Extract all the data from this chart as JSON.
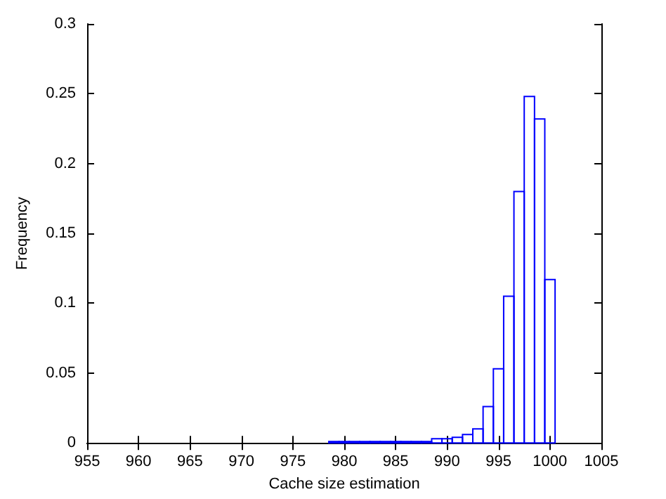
{
  "chart_data": {
    "type": "histogram",
    "xlabel": "Cache size estimation",
    "ylabel": "Frequency",
    "color": "#0000ff",
    "bins": [
      978.5,
      979.5,
      980.5,
      981.5,
      982.5,
      983.5,
      984.5,
      985.5,
      986.5,
      987.5,
      988.5,
      989.5,
      990.5,
      991.5,
      992.5,
      993.5,
      994.5,
      995.5,
      996.5,
      997.5,
      998.5,
      999.5,
      1000.5
    ],
    "values": [
      0.001,
      0.001,
      0.001,
      0.001,
      0.001,
      0.001,
      0.001,
      0.001,
      0.001,
      0.001,
      0.003,
      0.003,
      0.004,
      0.006,
      0.01,
      0.026,
      0.053,
      0.105,
      0.18,
      0.248,
      0.232,
      0.117
    ],
    "xlim": [
      955,
      1005
    ],
    "xticks": [
      955,
      960,
      965,
      970,
      975,
      980,
      985,
      990,
      995,
      1000,
      1005
    ],
    "ylim": [
      0,
      0.3
    ],
    "yticks": [
      0,
      0.05,
      0.1,
      0.15,
      0.2,
      0.25,
      0.3
    ],
    "grid": false
  }
}
